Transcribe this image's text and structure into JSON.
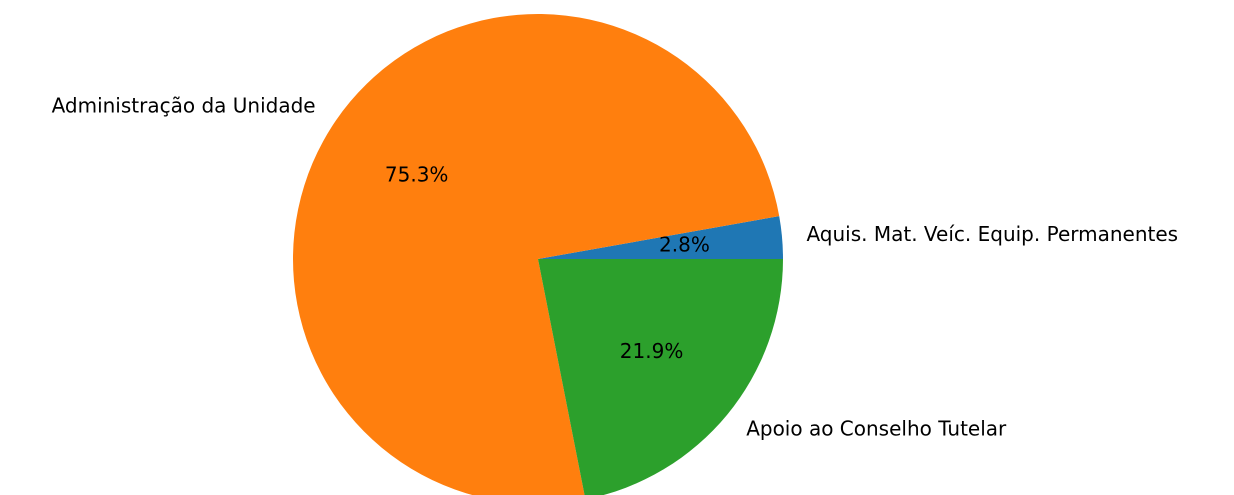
{
  "chart_data": {
    "type": "pie",
    "categories": [
      "Aquis. Mat. Veíc. Equip. Permanentes",
      "Administração da Unidade",
      "Apoio ao Conselho Tutelar"
    ],
    "values": [
      2.8,
      75.3,
      21.9
    ],
    "value_labels": [
      "2.8%",
      "75.3%",
      "21.9%"
    ],
    "colors": [
      "#1f77b4",
      "#ff7f0e",
      "#2ca02c"
    ]
  }
}
